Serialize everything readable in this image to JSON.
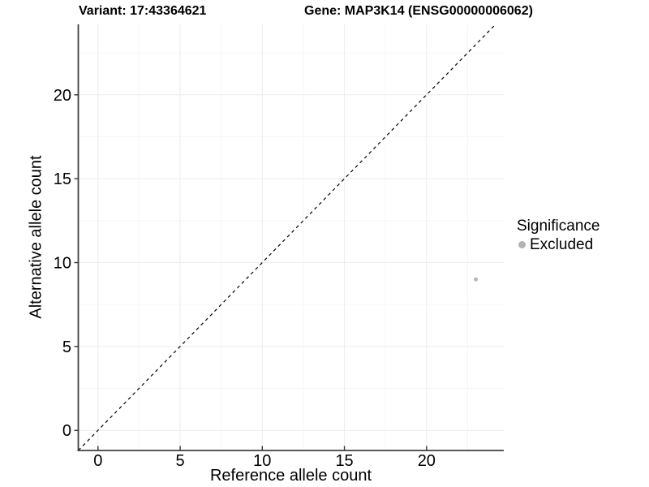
{
  "chart_data": {
    "type": "scatter",
    "title_left": "Variant: 17:43364621",
    "title_right": "Gene: MAP3K14 (ENSG00000006062)",
    "xlabel": "Reference allele count",
    "ylabel": "Alternative allele count",
    "xlim": [
      -1.2,
      24.7
    ],
    "ylim": [
      -1.2,
      24.2
    ],
    "x_ticks": [
      0,
      5,
      10,
      15,
      20
    ],
    "y_ticks": [
      0,
      5,
      10,
      15,
      20
    ],
    "x_minor_ticks": [
      2.5,
      7.5,
      12.5,
      17.5,
      22.5
    ],
    "y_minor_ticks": [
      2.5,
      7.5,
      12.5,
      17.5,
      22.5
    ],
    "grid": true,
    "reference_line": {
      "kind": "identity",
      "style": "dashed",
      "color": "#000000"
    },
    "series": [
      {
        "name": "Excluded",
        "color": "#b9b9b9",
        "points": [
          {
            "x": 23,
            "y": 9
          }
        ]
      }
    ],
    "legend": {
      "title": "Significance",
      "position": "right",
      "items": [
        {
          "label": "Excluded",
          "color": "#b3b3b3"
        }
      ]
    },
    "colors": {
      "axis_line": "#404040",
      "tick_mark": "#333333",
      "grid_major": "#ececec",
      "grid_minor": "#f6f6f6",
      "background": "#ffffff"
    }
  }
}
